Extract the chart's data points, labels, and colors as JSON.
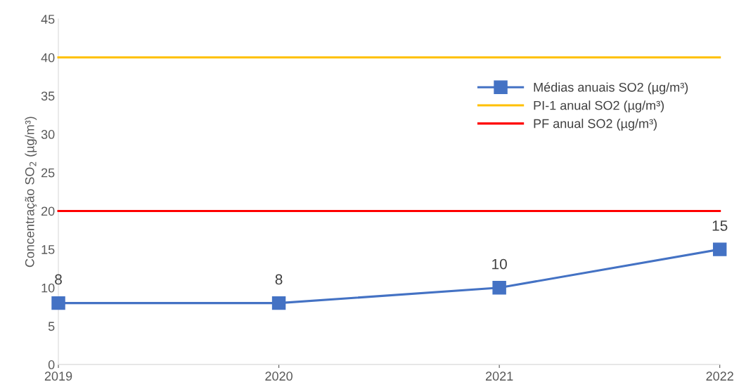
{
  "chart_data": {
    "type": "line",
    "ylabel": "Concentração SO$_{2}$ (µg/m³)",
    "categories": [
      "2019",
      "2020",
      "2021",
      "2022"
    ],
    "series": [
      {
        "name": "Médias anuais SO2 (µg/m³)",
        "color": "#4472c4",
        "marker": "square",
        "data_labels": true,
        "values": [
          8,
          8,
          10,
          15
        ]
      },
      {
        "name": "PI-1 anual SO2 (µg/m³)",
        "color": "#ffc000",
        "marker": "none",
        "values": [
          40,
          40,
          40,
          40
        ]
      },
      {
        "name": "PF anual SO2 (µg/m³)",
        "color": "#ff0000",
        "marker": "none",
        "values": [
          20,
          20,
          20,
          20
        ]
      }
    ],
    "ylim": [
      0,
      45
    ],
    "yticks": [
      0,
      5,
      10,
      15,
      20,
      25,
      30,
      35,
      40,
      45
    ],
    "grid": false,
    "legend": "top right",
    "line_style": "solid"
  }
}
